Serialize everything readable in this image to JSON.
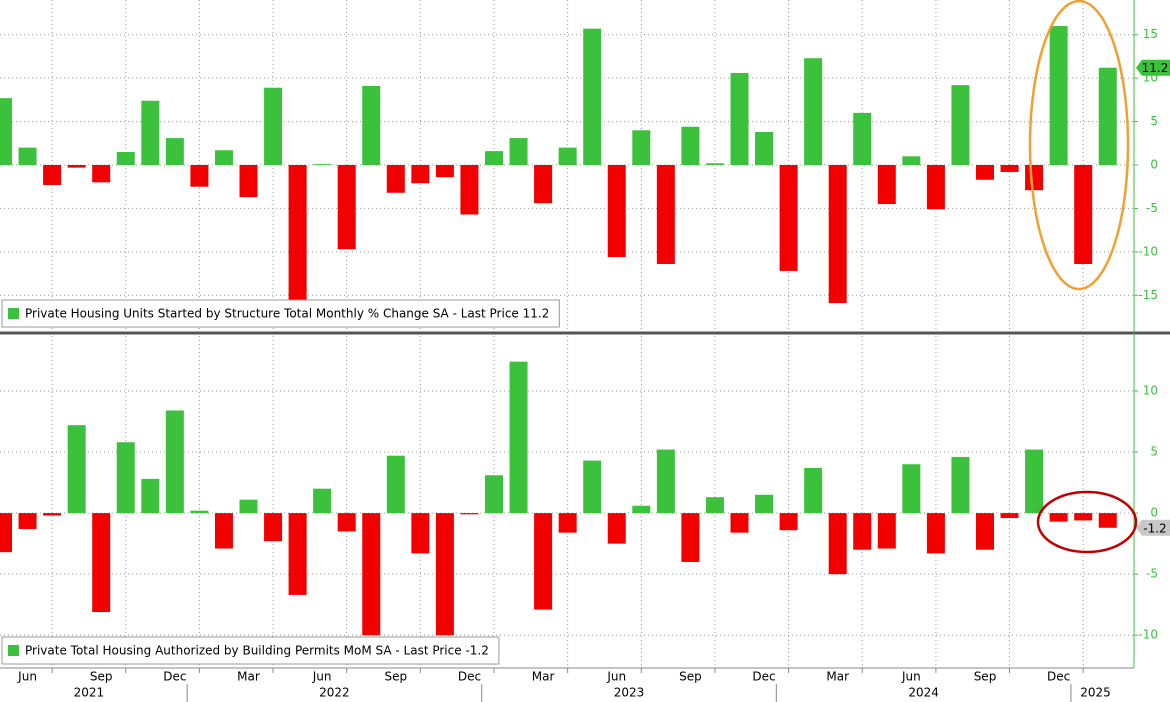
{
  "chart_data": [
    {
      "type": "bar",
      "legend": "Private Housing Units Started by Structure Total Monthly % Change SA - Last Price 11.2",
      "values": [
        7.7,
        2.0,
        -2.3,
        -0.3,
        -2.0,
        1.5,
        7.4,
        3.1,
        -2.5,
        1.7,
        -3.7,
        8.9,
        -15.5,
        0.1,
        -9.7,
        9.1,
        -3.2,
        -2.1,
        -1.4,
        -5.7,
        1.6,
        3.1,
        -4.4,
        2.0,
        15.7,
        -10.6,
        4.0,
        -11.4,
        4.4,
        0.2,
        10.6,
        3.8,
        -12.2,
        12.3,
        -15.9,
        6.0,
        -4.5,
        1.0,
        -5.1,
        9.2,
        -1.7,
        -0.8,
        -2.9,
        16.0,
        -11.4,
        11.2
      ],
      "positive_color": "#3cc13c",
      "negative_color": "#f20000",
      "ylim": [
        -19,
        19
      ],
      "yticks": [
        -15,
        -10,
        -5,
        0,
        5,
        10,
        15
      ],
      "last_price": 11.2,
      "last_price_color": "#3cc13c"
    },
    {
      "type": "bar",
      "legend": "Private Total Housing Authorized by Building Permits MoM SA - Last Price -1.2",
      "categories": [
        null,
        "Jun",
        null,
        null,
        "Sep",
        null,
        null,
        "Dec",
        null,
        null,
        "Mar",
        null,
        null,
        "Jun",
        null,
        null,
        "Sep",
        null,
        null,
        "Dec",
        null,
        null,
        "Mar",
        null,
        null,
        "Jun",
        null,
        null,
        "Sep",
        null,
        null,
        "Dec",
        null,
        null,
        "Mar",
        null,
        null,
        "Jun",
        null,
        null,
        "Sep",
        null,
        null,
        "Dec",
        null,
        null
      ],
      "years": [
        "2021",
        "2022",
        "2023",
        "2024",
        "2025"
      ],
      "values": [
        -3.2,
        -1.3,
        -0.2,
        7.2,
        -8.1,
        5.8,
        2.8,
        8.4,
        0.2,
        -2.9,
        1.1,
        -2.3,
        -6.7,
        2.0,
        -1.5,
        -10.0,
        4.7,
        -3.3,
        -10.0,
        -0.1,
        3.1,
        12.4,
        -7.9,
        -1.6,
        4.3,
        -2.5,
        0.6,
        5.2,
        -4.0,
        1.3,
        -1.6,
        1.5,
        -1.4,
        3.7,
        -5.0,
        -3.0,
        -2.9,
        4.0,
        -3.3,
        4.6,
        -3.0,
        -0.4,
        5.2,
        -0.7,
        -0.6,
        -1.2
      ],
      "positive_color": "#3cc13c",
      "negative_color": "#f20000",
      "ylim": [
        -12.6,
        14.5
      ],
      "yticks": [
        -10,
        -5,
        0,
        5,
        10
      ],
      "last_price": -1.2,
      "last_price_color": "#c8c8c8"
    }
  ]
}
